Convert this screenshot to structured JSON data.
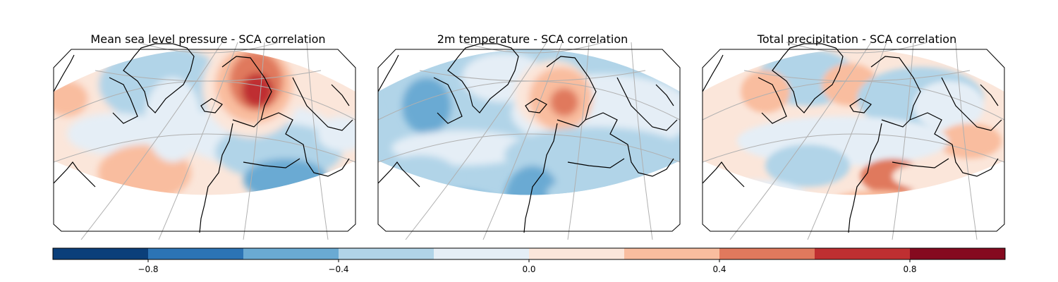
{
  "panels": [
    {
      "id": "mslp",
      "title": "Mean sea level pressure - SCA correlation"
    },
    {
      "id": "t2m",
      "title": "2m temperature - SCA correlation"
    },
    {
      "id": "tp",
      "title": "Total precipitation - SCA correlation"
    }
  ],
  "colorbar": {
    "colormap": "RdBu_r",
    "levels": [
      -1.0,
      -0.8,
      -0.6,
      -0.4,
      -0.2,
      0.0,
      0.2,
      0.4,
      0.6,
      0.8,
      1.0
    ],
    "colors": [
      "#0b3f7a",
      "#2c74b5",
      "#6aaad3",
      "#b1d4e8",
      "#e5eef6",
      "#fbe6da",
      "#f9bd9f",
      "#e0795d",
      "#bf2f31",
      "#850a1f"
    ],
    "tick_values": [
      -0.8,
      -0.4,
      0.0,
      0.4,
      0.8
    ],
    "tick_labels": [
      "−0.8",
      "−0.4",
      "0.0",
      "0.4",
      "0.8"
    ]
  }
}
